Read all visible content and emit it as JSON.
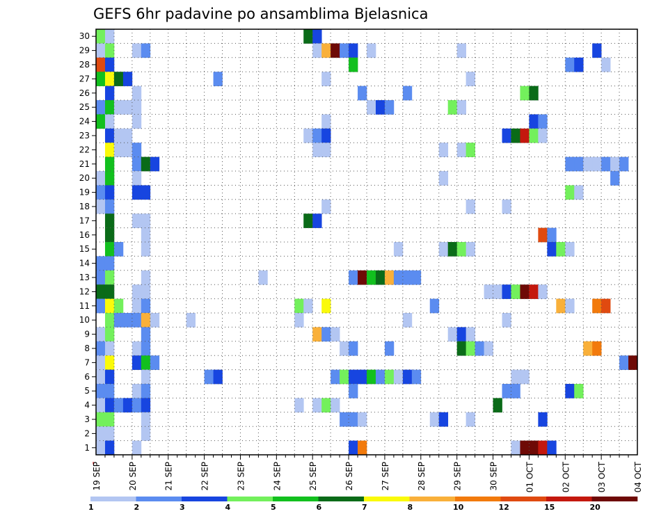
{
  "chart_data": {
    "type": "heatmap",
    "title": "GEFS 6hr padavine po ansamblima Bjelasnica",
    "xlabel": "",
    "ylabel": "",
    "x_ticks": [
      "19 SEP",
      "20 SEP",
      "21 SEP",
      "22 SEP",
      "23 SEP",
      "24 SEP",
      "25 SEP",
      "26 SEP",
      "27 SEP",
      "28 SEP",
      "29 SEP",
      "30 SEP",
      "01 OCT",
      "02 OCT",
      "03 OCT",
      "04 OCT"
    ],
    "y_ticks": [
      "1",
      "2",
      "3",
      "4",
      "5",
      "6",
      "7",
      "8",
      "9",
      "10",
      "11",
      "12",
      "13",
      "14",
      "15",
      "16",
      "17",
      "18",
      "19",
      "20",
      "21",
      "22",
      "23",
      "24",
      "25",
      "26",
      "27",
      "28",
      "29",
      "30"
    ],
    "grid": true,
    "steps_per_day": 4,
    "colorbar": {
      "labels": [
        "1",
        "2",
        "3",
        "4",
        "5",
        "6",
        "7",
        "8",
        "10",
        "12",
        "15",
        "20"
      ],
      "colors": [
        "#b3c6f2",
        "#5b8cf0",
        "#1745e0",
        "#73f05c",
        "#12c01e",
        "#0a6b18",
        "#fafa0a",
        "#f9b03a",
        "#f27a0c",
        "#e04a10",
        "#c4180e",
        "#6e0a06"
      ]
    },
    "cells": [
      {
        "m": 30,
        "t": 1,
        "v": 4
      },
      {
        "m": 30,
        "t": 2,
        "v": 1
      },
      {
        "m": 30,
        "t": 24,
        "v": 6
      },
      {
        "m": 30,
        "t": 25,
        "v": 3
      },
      {
        "m": 29,
        "t": 1,
        "v": 1
      },
      {
        "m": 29,
        "t": 2,
        "v": 4
      },
      {
        "m": 29,
        "t": 5,
        "v": 1
      },
      {
        "m": 29,
        "t": 6,
        "v": 2
      },
      {
        "m": 29,
        "t": 25,
        "v": 1
      },
      {
        "m": 29,
        "t": 26,
        "v": 8
      },
      {
        "m": 29,
        "t": 27,
        "v": 20
      },
      {
        "m": 29,
        "t": 28,
        "v": 2
      },
      {
        "m": 29,
        "t": 29,
        "v": 3
      },
      {
        "m": 29,
        "t": 31,
        "v": 1
      },
      {
        "m": 29,
        "t": 41,
        "v": 1
      },
      {
        "m": 29,
        "t": 56,
        "v": 3
      },
      {
        "m": 28,
        "t": 1,
        "v": 12
      },
      {
        "m": 28,
        "t": 2,
        "v": 3
      },
      {
        "m": 28,
        "t": 29,
        "v": 5
      },
      {
        "m": 28,
        "t": 53,
        "v": 2
      },
      {
        "m": 28,
        "t": 54,
        "v": 3
      },
      {
        "m": 28,
        "t": 57,
        "v": 1
      },
      {
        "m": 27,
        "t": 1,
        "v": 5
      },
      {
        "m": 27,
        "t": 2,
        "v": 7
      },
      {
        "m": 27,
        "t": 3,
        "v": 6
      },
      {
        "m": 27,
        "t": 4,
        "v": 3
      },
      {
        "m": 27,
        "t": 14,
        "v": 2
      },
      {
        "m": 27,
        "t": 26,
        "v": 1
      },
      {
        "m": 27,
        "t": 42,
        "v": 1
      },
      {
        "m": 26,
        "t": 2,
        "v": 3
      },
      {
        "m": 26,
        "t": 5,
        "v": 1
      },
      {
        "m": 26,
        "t": 30,
        "v": 2
      },
      {
        "m": 26,
        "t": 35,
        "v": 2
      },
      {
        "m": 26,
        "t": 48,
        "v": 4
      },
      {
        "m": 26,
        "t": 49,
        "v": 6
      },
      {
        "m": 25,
        "t": 1,
        "v": 2
      },
      {
        "m": 25,
        "t": 2,
        "v": 5
      },
      {
        "m": 25,
        "t": 3,
        "v": 1
      },
      {
        "m": 25,
        "t": 4,
        "v": 1
      },
      {
        "m": 25,
        "t": 5,
        "v": 1
      },
      {
        "m": 25,
        "t": 31,
        "v": 1
      },
      {
        "m": 25,
        "t": 32,
        "v": 3
      },
      {
        "m": 25,
        "t": 33,
        "v": 2
      },
      {
        "m": 25,
        "t": 40,
        "v": 4
      },
      {
        "m": 25,
        "t": 41,
        "v": 1
      },
      {
        "m": 24,
        "t": 1,
        "v": 5
      },
      {
        "m": 24,
        "t": 2,
        "v": 1
      },
      {
        "m": 24,
        "t": 5,
        "v": 1
      },
      {
        "m": 24,
        "t": 26,
        "v": 1
      },
      {
        "m": 24,
        "t": 49,
        "v": 3
      },
      {
        "m": 24,
        "t": 50,
        "v": 2
      },
      {
        "m": 23,
        "t": 2,
        "v": 3
      },
      {
        "m": 23,
        "t": 3,
        "v": 1
      },
      {
        "m": 23,
        "t": 4,
        "v": 1
      },
      {
        "m": 23,
        "t": 24,
        "v": 1
      },
      {
        "m": 23,
        "t": 25,
        "v": 2
      },
      {
        "m": 23,
        "t": 26,
        "v": 3
      },
      {
        "m": 23,
        "t": 46,
        "v": 3
      },
      {
        "m": 23,
        "t": 47,
        "v": 6
      },
      {
        "m": 23,
        "t": 48,
        "v": 15
      },
      {
        "m": 23,
        "t": 49,
        "v": 4
      },
      {
        "m": 23,
        "t": 50,
        "v": 1
      },
      {
        "m": 22,
        "t": 2,
        "v": 7
      },
      {
        "m": 22,
        "t": 3,
        "v": 1
      },
      {
        "m": 22,
        "t": 4,
        "v": 1
      },
      {
        "m": 22,
        "t": 5,
        "v": 2
      },
      {
        "m": 22,
        "t": 25,
        "v": 1
      },
      {
        "m": 22,
        "t": 26,
        "v": 1
      },
      {
        "m": 22,
        "t": 39,
        "v": 1
      },
      {
        "m": 22,
        "t": 41,
        "v": 1
      },
      {
        "m": 22,
        "t": 42,
        "v": 4
      },
      {
        "m": 21,
        "t": 2,
        "v": 5
      },
      {
        "m": 21,
        "t": 5,
        "v": 2
      },
      {
        "m": 21,
        "t": 6,
        "v": 6
      },
      {
        "m": 21,
        "t": 7,
        "v": 3
      },
      {
        "m": 21,
        "t": 53,
        "v": 2
      },
      {
        "m": 21,
        "t": 54,
        "v": 2
      },
      {
        "m": 21,
        "t": 55,
        "v": 1
      },
      {
        "m": 21,
        "t": 56,
        "v": 1
      },
      {
        "m": 21,
        "t": 57,
        "v": 2
      },
      {
        "m": 21,
        "t": 58,
        "v": 1
      },
      {
        "m": 21,
        "t": 59,
        "v": 2
      },
      {
        "m": 20,
        "t": 1,
        "v": 1
      },
      {
        "m": 20,
        "t": 2,
        "v": 5
      },
      {
        "m": 20,
        "t": 5,
        "v": 1
      },
      {
        "m": 20,
        "t": 39,
        "v": 1
      },
      {
        "m": 20,
        "t": 58,
        "v": 2
      },
      {
        "m": 19,
        "t": 1,
        "v": 2
      },
      {
        "m": 19,
        "t": 2,
        "v": 3
      },
      {
        "m": 19,
        "t": 5,
        "v": 3
      },
      {
        "m": 19,
        "t": 6,
        "v": 3
      },
      {
        "m": 19,
        "t": 53,
        "v": 4
      },
      {
        "m": 19,
        "t": 54,
        "v": 1
      },
      {
        "m": 18,
        "t": 1,
        "v": 1
      },
      {
        "m": 18,
        "t": 2,
        "v": 2
      },
      {
        "m": 18,
        "t": 26,
        "v": 1
      },
      {
        "m": 18,
        "t": 42,
        "v": 1
      },
      {
        "m": 18,
        "t": 46,
        "v": 1
      },
      {
        "m": 17,
        "t": 2,
        "v": 6
      },
      {
        "m": 17,
        "t": 5,
        "v": 1
      },
      {
        "m": 17,
        "t": 6,
        "v": 1
      },
      {
        "m": 17,
        "t": 24,
        "v": 6
      },
      {
        "m": 17,
        "t": 25,
        "v": 3
      },
      {
        "m": 16,
        "t": 2,
        "v": 6
      },
      {
        "m": 16,
        "t": 6,
        "v": 1
      },
      {
        "m": 16,
        "t": 50,
        "v": 12
      },
      {
        "m": 16,
        "t": 51,
        "v": 2
      },
      {
        "m": 15,
        "t": 2,
        "v": 5
      },
      {
        "m": 15,
        "t": 3,
        "v": 2
      },
      {
        "m": 15,
        "t": 6,
        "v": 1
      },
      {
        "m": 15,
        "t": 34,
        "v": 1
      },
      {
        "m": 15,
        "t": 39,
        "v": 1
      },
      {
        "m": 15,
        "t": 40,
        "v": 6
      },
      {
        "m": 15,
        "t": 41,
        "v": 4
      },
      {
        "m": 15,
        "t": 42,
        "v": 1
      },
      {
        "m": 15,
        "t": 51,
        "v": 3
      },
      {
        "m": 15,
        "t": 52,
        "v": 4
      },
      {
        "m": 15,
        "t": 53,
        "v": 1
      },
      {
        "m": 14,
        "t": 1,
        "v": 2
      },
      {
        "m": 14,
        "t": 2,
        "v": 2
      },
      {
        "m": 13,
        "t": 1,
        "v": 2
      },
      {
        "m": 13,
        "t": 2,
        "v": 4
      },
      {
        "m": 13,
        "t": 6,
        "v": 1
      },
      {
        "m": 13,
        "t": 19,
        "v": 1
      },
      {
        "m": 13,
        "t": 29,
        "v": 2
      },
      {
        "m": 13,
        "t": 30,
        "v": 20
      },
      {
        "m": 13,
        "t": 31,
        "v": 5
      },
      {
        "m": 13,
        "t": 32,
        "v": 6
      },
      {
        "m": 13,
        "t": 33,
        "v": 8
      },
      {
        "m": 13,
        "t": 34,
        "v": 2
      },
      {
        "m": 13,
        "t": 35,
        "v": 2
      },
      {
        "m": 13,
        "t": 36,
        "v": 2
      },
      {
        "m": 12,
        "t": 1,
        "v": 6
      },
      {
        "m": 12,
        "t": 2,
        "v": 6
      },
      {
        "m": 12,
        "t": 5,
        "v": 1
      },
      {
        "m": 12,
        "t": 6,
        "v": 1
      },
      {
        "m": 12,
        "t": 44,
        "v": 1
      },
      {
        "m": 12,
        "t": 45,
        "v": 1
      },
      {
        "m": 12,
        "t": 46,
        "v": 3
      },
      {
        "m": 12,
        "t": 47,
        "v": 4
      },
      {
        "m": 12,
        "t": 48,
        "v": 20
      },
      {
        "m": 12,
        "t": 49,
        "v": 15
      },
      {
        "m": 12,
        "t": 50,
        "v": 1
      },
      {
        "m": 11,
        "t": 1,
        "v": 2
      },
      {
        "m": 11,
        "t": 2,
        "v": 7
      },
      {
        "m": 11,
        "t": 3,
        "v": 4
      },
      {
        "m": 11,
        "t": 5,
        "v": 1
      },
      {
        "m": 11,
        "t": 6,
        "v": 2
      },
      {
        "m": 11,
        "t": 23,
        "v": 4
      },
      {
        "m": 11,
        "t": 24,
        "v": 1
      },
      {
        "m": 11,
        "t": 26,
        "v": 7
      },
      {
        "m": 11,
        "t": 38,
        "v": 2
      },
      {
        "m": 11,
        "t": 52,
        "v": 8
      },
      {
        "m": 11,
        "t": 53,
        "v": 1
      },
      {
        "m": 11,
        "t": 56,
        "v": 10
      },
      {
        "m": 11,
        "t": 57,
        "v": 12
      },
      {
        "m": 10,
        "t": 2,
        "v": 4
      },
      {
        "m": 10,
        "t": 3,
        "v": 2
      },
      {
        "m": 10,
        "t": 4,
        "v": 2
      },
      {
        "m": 10,
        "t": 5,
        "v": 2
      },
      {
        "m": 10,
        "t": 6,
        "v": 8
      },
      {
        "m": 10,
        "t": 7,
        "v": 1
      },
      {
        "m": 10,
        "t": 11,
        "v": 1
      },
      {
        "m": 10,
        "t": 23,
        "v": 1
      },
      {
        "m": 10,
        "t": 35,
        "v": 1
      },
      {
        "m": 10,
        "t": 46,
        "v": 1
      },
      {
        "m": 9,
        "t": 1,
        "v": 1
      },
      {
        "m": 9,
        "t": 2,
        "v": 4
      },
      {
        "m": 9,
        "t": 6,
        "v": 2
      },
      {
        "m": 9,
        "t": 25,
        "v": 8
      },
      {
        "m": 9,
        "t": 26,
        "v": 2
      },
      {
        "m": 9,
        "t": 27,
        "v": 1
      },
      {
        "m": 9,
        "t": 40,
        "v": 1
      },
      {
        "m": 9,
        "t": 41,
        "v": 3
      },
      {
        "m": 9,
        "t": 42,
        "v": 1
      },
      {
        "m": 8,
        "t": 1,
        "v": 2
      },
      {
        "m": 8,
        "t": 2,
        "v": 1
      },
      {
        "m": 8,
        "t": 5,
        "v": 1
      },
      {
        "m": 8,
        "t": 6,
        "v": 2
      },
      {
        "m": 8,
        "t": 28,
        "v": 1
      },
      {
        "m": 8,
        "t": 29,
        "v": 2
      },
      {
        "m": 8,
        "t": 33,
        "v": 2
      },
      {
        "m": 8,
        "t": 41,
        "v": 6
      },
      {
        "m": 8,
        "t": 42,
        "v": 4
      },
      {
        "m": 8,
        "t": 43,
        "v": 2
      },
      {
        "m": 8,
        "t": 44,
        "v": 1
      },
      {
        "m": 8,
        "t": 55,
        "v": 8
      },
      {
        "m": 8,
        "t": 56,
        "v": 10
      },
      {
        "m": 7,
        "t": 1,
        "v": 1
      },
      {
        "m": 7,
        "t": 2,
        "v": 7
      },
      {
        "m": 7,
        "t": 5,
        "v": 3
      },
      {
        "m": 7,
        "t": 6,
        "v": 5
      },
      {
        "m": 7,
        "t": 7,
        "v": 2
      },
      {
        "m": 7,
        "t": 59,
        "v": 2
      },
      {
        "m": 7,
        "t": 60,
        "v": 20
      },
      {
        "m": 6,
        "t": 1,
        "v": 1
      },
      {
        "m": 6,
        "t": 2,
        "v": 3
      },
      {
        "m": 6,
        "t": 6,
        "v": 1
      },
      {
        "m": 6,
        "t": 13,
        "v": 2
      },
      {
        "m": 6,
        "t": 14,
        "v": 3
      },
      {
        "m": 6,
        "t": 27,
        "v": 2
      },
      {
        "m": 6,
        "t": 28,
        "v": 4
      },
      {
        "m": 6,
        "t": 29,
        "v": 3
      },
      {
        "m": 6,
        "t": 30,
        "v": 3
      },
      {
        "m": 6,
        "t": 31,
        "v": 5
      },
      {
        "m": 6,
        "t": 32,
        "v": 2
      },
      {
        "m": 6,
        "t": 33,
        "v": 4
      },
      {
        "m": 6,
        "t": 34,
        "v": 1
      },
      {
        "m": 6,
        "t": 35,
        "v": 3
      },
      {
        "m": 6,
        "t": 36,
        "v": 2
      },
      {
        "m": 6,
        "t": 47,
        "v": 1
      },
      {
        "m": 6,
        "t": 48,
        "v": 1
      },
      {
        "m": 5,
        "t": 1,
        "v": 2
      },
      {
        "m": 5,
        "t": 2,
        "v": 2
      },
      {
        "m": 5,
        "t": 5,
        "v": 1
      },
      {
        "m": 5,
        "t": 6,
        "v": 2
      },
      {
        "m": 5,
        "t": 29,
        "v": 2
      },
      {
        "m": 5,
        "t": 46,
        "v": 2
      },
      {
        "m": 5,
        "t": 47,
        "v": 2
      },
      {
        "m": 5,
        "t": 53,
        "v": 3
      },
      {
        "m": 5,
        "t": 54,
        "v": 4
      },
      {
        "m": 4,
        "t": 1,
        "v": 1
      },
      {
        "m": 4,
        "t": 2,
        "v": 3
      },
      {
        "m": 4,
        "t": 3,
        "v": 2
      },
      {
        "m": 4,
        "t": 4,
        "v": 3
      },
      {
        "m": 4,
        "t": 5,
        "v": 2
      },
      {
        "m": 4,
        "t": 6,
        "v": 3
      },
      {
        "m": 4,
        "t": 23,
        "v": 1
      },
      {
        "m": 4,
        "t": 25,
        "v": 1
      },
      {
        "m": 4,
        "t": 26,
        "v": 4
      },
      {
        "m": 4,
        "t": 27,
        "v": 1
      },
      {
        "m": 4,
        "t": 45,
        "v": 6
      },
      {
        "m": 3,
        "t": 1,
        "v": 4
      },
      {
        "m": 3,
        "t": 2,
        "v": 4
      },
      {
        "m": 3,
        "t": 6,
        "v": 1
      },
      {
        "m": 3,
        "t": 28,
        "v": 2
      },
      {
        "m": 3,
        "t": 29,
        "v": 2
      },
      {
        "m": 3,
        "t": 30,
        "v": 1
      },
      {
        "m": 3,
        "t": 38,
        "v": 1
      },
      {
        "m": 3,
        "t": 39,
        "v": 3
      },
      {
        "m": 3,
        "t": 42,
        "v": 1
      },
      {
        "m": 3,
        "t": 50,
        "v": 3
      },
      {
        "m": 2,
        "t": 1,
        "v": 1
      },
      {
        "m": 2,
        "t": 2,
        "v": 1
      },
      {
        "m": 2,
        "t": 6,
        "v": 1
      },
      {
        "m": 1,
        "t": 1,
        "v": 1
      },
      {
        "m": 1,
        "t": 2,
        "v": 3
      },
      {
        "m": 1,
        "t": 5,
        "v": 1
      },
      {
        "m": 1,
        "t": 29,
        "v": 3
      },
      {
        "m": 1,
        "t": 30,
        "v": 10
      },
      {
        "m": 1,
        "t": 47,
        "v": 1
      },
      {
        "m": 1,
        "t": 48,
        "v": 20
      },
      {
        "m": 1,
        "t": 49,
        "v": 20
      },
      {
        "m": 1,
        "t": 50,
        "v": 15
      },
      {
        "m": 1,
        "t": 51,
        "v": 3
      }
    ]
  }
}
